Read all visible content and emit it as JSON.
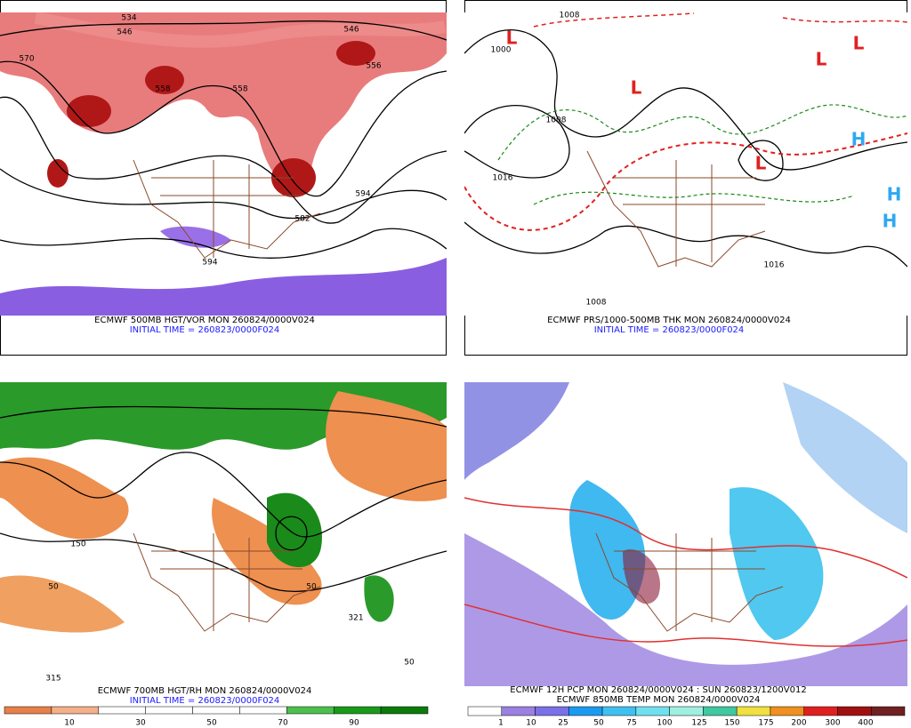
{
  "panels": [
    {
      "caption": "ECMWF 500MB HGT/VOR MON 260824/0000V024",
      "initial": "INITIAL TIME = 260823/0000F024",
      "labels": [
        "534",
        "546",
        "558",
        "570",
        "558",
        "556",
        "546",
        "594",
        "582",
        "594"
      ]
    },
    {
      "caption": "ECMWF PRS/1000-500MB THK MON 260824/0000V024",
      "initial": "INITIAL TIME = 260823/0000F024",
      "labels": [
        "1008",
        "1000",
        "L",
        "L",
        "L",
        "L",
        "L",
        "H",
        "H",
        "H",
        "1016",
        "1008",
        "1016",
        "1008"
      ]
    },
    {
      "caption": "ECMWF 700MB HGT/RH MON 260824/0000V024",
      "initial": "INITIAL TIME = 260823/0000F024",
      "labels": [
        "150",
        "50",
        "315",
        "50",
        "50",
        "321"
      ]
    },
    {
      "caption": "ECMWF 12H PCP MON 260824/0000V024 : SUN 260823/1200V012",
      "initial": "ECMWF 850MB TEMP MON 260824/0000V024",
      "labels": []
    }
  ],
  "colorbars": [
    {
      "colors": [
        "#e8804a",
        "#f4b088",
        "#ffffff",
        "#ffffff",
        "#ffffff",
        "#ffffff",
        "#4cc04c",
        "#1a9a1a",
        "#0a7a0a"
      ],
      "labels": [
        "10",
        "30",
        "50",
        "70",
        "90"
      ]
    },
    {
      "colors": [
        "#ffffff",
        "#9a80e0",
        "#7a70e8",
        "#1a9af0",
        "#40c0f0",
        "#70e0f0",
        "#a0f0e0",
        "#40c8a0",
        "#f0e040",
        "#f09020",
        "#e02020",
        "#a01010",
        "#702020"
      ],
      "labels": [
        "1",
        "10",
        "25",
        "50",
        "75",
        "100",
        "125",
        "150",
        "175",
        "200",
        "300",
        "400"
      ]
    }
  ]
}
